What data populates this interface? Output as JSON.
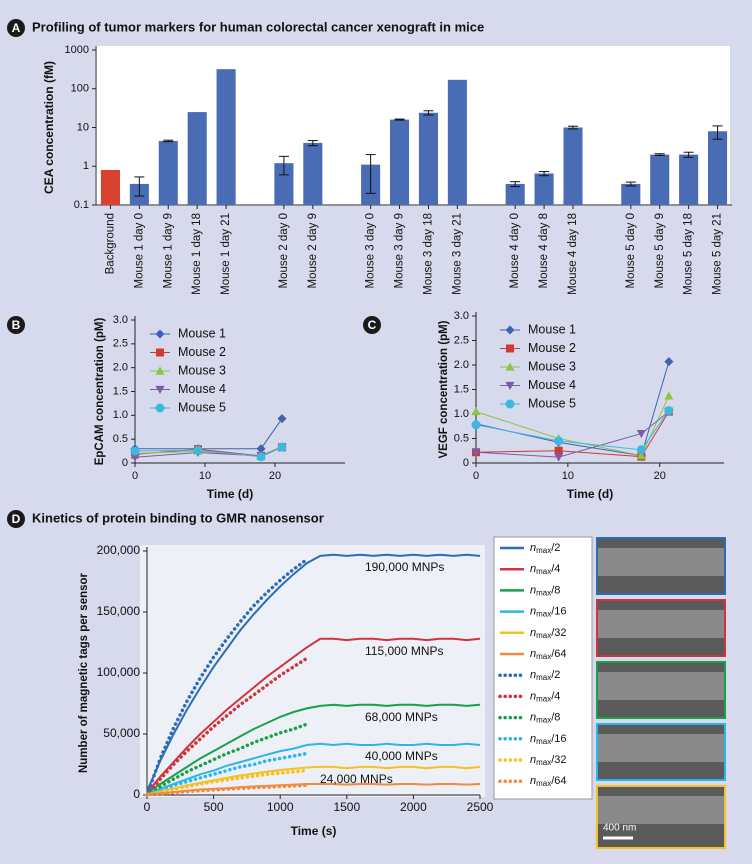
{
  "chart_data": [
    {
      "type": "bar",
      "panel": "A",
      "title": "Profiling of tumor markers for human colorectal cancer xenograft in mice",
      "y_label": "CEA concentration (fM)",
      "log_y": true,
      "ylim": [
        0.1,
        1000
      ],
      "yticks": [
        0.1,
        1,
        10,
        100,
        1000
      ],
      "categories": [
        "Background",
        "Mouse 1 day 0",
        "Mouse 1 day 9",
        "Mouse 1 day 18",
        "Mouse 1 day 21",
        null,
        "Mouse 2 day 0",
        "Mouse 2 day 9",
        null,
        "Mouse 3 day 0",
        "Mouse 3 day 9",
        "Mouse 3 day 18",
        "Mouse 3 day 21",
        null,
        "Mouse 4 day 0",
        "Mouse 4 day 8",
        "Mouse 4 day 18",
        null,
        "Mouse 5 day 0",
        "Mouse 5 day 9",
        "Mouse 5 day 18",
        "Mouse 5 day 21"
      ],
      "values": [
        0.8,
        0.35,
        4.5,
        25,
        320,
        null,
        1.2,
        4,
        null,
        1.1,
        16,
        24,
        170,
        null,
        0.35,
        0.65,
        10,
        null,
        0.35,
        2,
        2,
        8
      ],
      "errors": [
        null,
        0.18,
        0.2,
        null,
        null,
        null,
        0.6,
        0.6,
        null,
        0.9,
        0.5,
        3,
        null,
        null,
        0.05,
        0.08,
        0.8,
        null,
        0.04,
        0.1,
        0.3,
        3
      ],
      "colors": [
        "#d9422e",
        "#4a6cb4",
        "#4a6cb4",
        "#4a6cb4",
        "#4a6cb4",
        null,
        "#4a6cb4",
        "#4a6cb4",
        null,
        "#4a6cb4",
        "#4a6cb4",
        "#4a6cb4",
        "#4a6cb4",
        null,
        "#4a6cb4",
        "#4a6cb4",
        "#4a6cb4",
        null,
        "#4a6cb4",
        "#4a6cb4",
        "#4a6cb4",
        "#4a6cb4"
      ]
    },
    {
      "type": "line",
      "panel": "B",
      "y_label": "EpCAM concentration (pM)",
      "x_label": "Time (d)",
      "xlim": [
        0,
        30
      ],
      "xticks": [
        0,
        10,
        20
      ],
      "ylim": [
        0,
        3
      ],
      "yticks": [
        0,
        0.5,
        {
          "value": 1,
          "label": "1.0"
        },
        1.5,
        {
          "value": 2,
          "label": "2.0"
        },
        2.5,
        {
          "value": 3,
          "label": "3.0"
        }
      ],
      "legend": "upper left",
      "x": [
        0,
        9,
        18,
        21
      ],
      "series": [
        {
          "name": "Mouse 1",
          "color": "#3c64b0",
          "marker": "diamond",
          "values": [
            0.3,
            0.3,
            0.3,
            0.93
          ]
        },
        {
          "name": "Mouse 2",
          "color": "#cf3a36",
          "marker": "square",
          "values": [
            0.18,
            0.29,
            0.15,
            0.33
          ]
        },
        {
          "name": "Mouse 3",
          "color": "#8cc63e",
          "marker": "triangle",
          "values": [
            0.2,
            0.25,
            0.15,
            0.35
          ]
        },
        {
          "name": "Mouse 4",
          "color": "#7d5ba6",
          "marker": "triangle-down",
          "values": [
            0.12,
            0.22,
            0.15,
            0.33
          ]
        },
        {
          "name": "Mouse 5",
          "color": "#3fb8e0",
          "marker": "circle",
          "values": [
            0.25,
            0.27,
            0.13,
            0.33
          ]
        }
      ]
    },
    {
      "type": "line",
      "panel": "C",
      "y_label": "VEGF concentration (pM)",
      "x_label": "Time (d)",
      "xlim": [
        0,
        27
      ],
      "xticks": [
        0,
        10,
        20
      ],
      "ylim": [
        0,
        3
      ],
      "yticks": [
        0,
        0.5,
        {
          "value": 1,
          "label": "1.0"
        },
        1.5,
        {
          "value": 2,
          "label": "2.0"
        },
        2.5,
        {
          "value": 3,
          "label": "3.0"
        }
      ],
      "legend": "upper left",
      "x": [
        0,
        9,
        18,
        21
      ],
      "series": [
        {
          "name": "Mouse 1",
          "color": "#3c64b0",
          "marker": "diamond",
          "values": [
            0.8,
            0.42,
            0.15,
            2.07
          ]
        },
        {
          "name": "Mouse 2",
          "color": "#cf3a36",
          "marker": "square",
          "values": [
            0.22,
            0.25,
            0.13,
            1.05
          ]
        },
        {
          "name": "Mouse 3",
          "color": "#8cc63e",
          "marker": "triangle",
          "values": [
            1.05,
            0.5,
            0.15,
            1.37
          ]
        },
        {
          "name": "Mouse 4",
          "color": "#7d5ba6",
          "marker": "triangle-down",
          "values": [
            0.22,
            0.12,
            0.6,
            1.05
          ]
        },
        {
          "name": "Mouse 5",
          "color": "#3fb8e0",
          "marker": "circle",
          "values": [
            0.78,
            0.45,
            0.27,
            1.07
          ]
        }
      ]
    },
    {
      "type": "line",
      "panel": "D",
      "title": "Kinetics of protein binding to GMR nanosensor",
      "y_label": "Number of magnetic tags per sensor",
      "x_label": "Time (s)",
      "xlim": [
        0,
        2500
      ],
      "xticks": [
        0,
        500,
        1000,
        1500,
        2000,
        2500
      ],
      "ylim": [
        0,
        200000
      ],
      "yticks": [
        0,
        {
          "value": 50000,
          "label": "50,000"
        },
        {
          "value": 100000,
          "label": "100,000"
        },
        {
          "value": 150000,
          "label": "150,000"
        },
        {
          "value": 200000,
          "label": "200,000"
        }
      ],
      "annotations": [
        "190,000 MNPs",
        "115,000 MNPs",
        "68,000 MNPs",
        "40,000 MNPs",
        "24,000 MNPs"
      ],
      "x": [
        0,
        100,
        200,
        300,
        400,
        500,
        600,
        700,
        800,
        900,
        1000,
        1100,
        1200,
        1300,
        1400,
        1500,
        1600,
        1700,
        1800,
        1900,
        2000,
        2100,
        2200,
        2300,
        2400,
        2500
      ],
      "series": [
        {
          "name": "nmax/2",
          "color": "#2a6db5",
          "dotted": false,
          "values": [
            3000,
            28000,
            50000,
            70000,
            88000,
            105000,
            120000,
            135000,
            148000,
            160000,
            171000,
            181000,
            190000,
            196000,
            197000,
            196000,
            197000,
            196000,
            197000,
            196000,
            197000,
            196000,
            197000,
            196000,
            197000,
            196000
          ]
        },
        {
          "name": "nmax/4",
          "color": "#d0343b",
          "dotted": false,
          "values": [
            2000,
            15000,
            27000,
            39000,
            50000,
            60000,
            70000,
            79000,
            88000,
            97000,
            105000,
            113000,
            121000,
            128000,
            128000,
            127000,
            128000,
            128000,
            127000,
            128000,
            128000,
            127000,
            128000,
            128000,
            127000,
            128000
          ]
        },
        {
          "name": "nmax/8",
          "color": "#1ba04a",
          "dotted": false,
          "values": [
            2000,
            9000,
            16000,
            23000,
            30000,
            36000,
            42000,
            48000,
            54000,
            59000,
            64000,
            68000,
            71000,
            73000,
            74000,
            73000,
            74000,
            74000,
            73000,
            74000,
            74000,
            73000,
            74000,
            74000,
            73000,
            74000
          ]
        },
        {
          "name": "nmax/16",
          "color": "#2cb5e8",
          "dotted": false,
          "values": [
            1000,
            5000,
            9000,
            13000,
            17000,
            20000,
            24000,
            27000,
            30000,
            33000,
            36000,
            38000,
            41000,
            42000,
            41000,
            42000,
            41000,
            41000,
            42000,
            41000,
            41000,
            42000,
            41000,
            41000,
            42000,
            41000
          ]
        },
        {
          "name": "nmax/32",
          "color": "#f5c020",
          "dotted": false,
          "values": [
            1000,
            3000,
            5500,
            8000,
            10000,
            12000,
            14000,
            16000,
            17500,
            19000,
            20500,
            21500,
            22500,
            23000,
            23000,
            22000,
            23000,
            23000,
            22000,
            23000,
            23000,
            22000,
            23000,
            23000,
            22000,
            23000
          ]
        },
        {
          "name": "nmax/64",
          "color": "#f08a3c",
          "dotted": false,
          "values": [
            500,
            1500,
            2500,
            3500,
            4500,
            5000,
            5500,
            6500,
            7000,
            7500,
            8000,
            8500,
            9000,
            9000,
            9000,
            8500,
            9000,
            9000,
            8500,
            9000,
            9000,
            8500,
            9000,
            9000,
            8500,
            9000
          ]
        },
        {
          "name": "nmax/2",
          "color": "#2a6db5",
          "dotted": true,
          "values": [
            0,
            30000,
            55000,
            77000,
            96000,
            113000,
            128000,
            142000,
            155000,
            166000,
            176000,
            185000,
            193000,
            null,
            null,
            null,
            null,
            null,
            null,
            null,
            null,
            null,
            null,
            null,
            null,
            null
          ]
        },
        {
          "name": "nmax/4",
          "color": "#d0343b",
          "dotted": true,
          "values": [
            0,
            13000,
            25000,
            36000,
            46000,
            56000,
            65000,
            74000,
            82000,
            90000,
            98000,
            105000,
            112000,
            null,
            null,
            null,
            null,
            null,
            null,
            null,
            null,
            null,
            null,
            null,
            null,
            null
          ]
        },
        {
          "name": "nmax/8",
          "color": "#1ba04a",
          "dotted": true,
          "values": [
            0,
            7000,
            13000,
            19000,
            24000,
            29000,
            34000,
            38000,
            43000,
            47000,
            51000,
            54000,
            58000,
            null,
            null,
            null,
            null,
            null,
            null,
            null,
            null,
            null,
            null,
            null,
            null,
            null
          ]
        },
        {
          "name": "nmax/16",
          "color": "#2cb5e8",
          "dotted": true,
          "values": [
            0,
            4000,
            8000,
            11000,
            14000,
            17000,
            20000,
            23000,
            25000,
            28000,
            30000,
            32000,
            34000,
            null,
            null,
            null,
            null,
            null,
            null,
            null,
            null,
            null,
            null,
            null,
            null,
            null
          ]
        },
        {
          "name": "nmax/32",
          "color": "#f5c020",
          "dotted": true,
          "values": [
            0,
            2500,
            5000,
            7000,
            9000,
            11000,
            12500,
            14000,
            15500,
            17000,
            18000,
            19000,
            20000,
            null,
            null,
            null,
            null,
            null,
            null,
            null,
            null,
            null,
            null,
            null,
            null,
            null
          ]
        },
        {
          "name": "nmax/64",
          "color": "#f08a3c",
          "dotted": true,
          "values": [
            0,
            1000,
            2000,
            2800,
            3500,
            4200,
            4800,
            5400,
            6000,
            6500,
            7000,
            7500,
            8000,
            null,
            null,
            null,
            null,
            null,
            null,
            null,
            null,
            null,
            null,
            null,
            null,
            null
          ]
        }
      ]
    }
  ],
  "sem_images": {
    "scale_label": "400 nm"
  }
}
